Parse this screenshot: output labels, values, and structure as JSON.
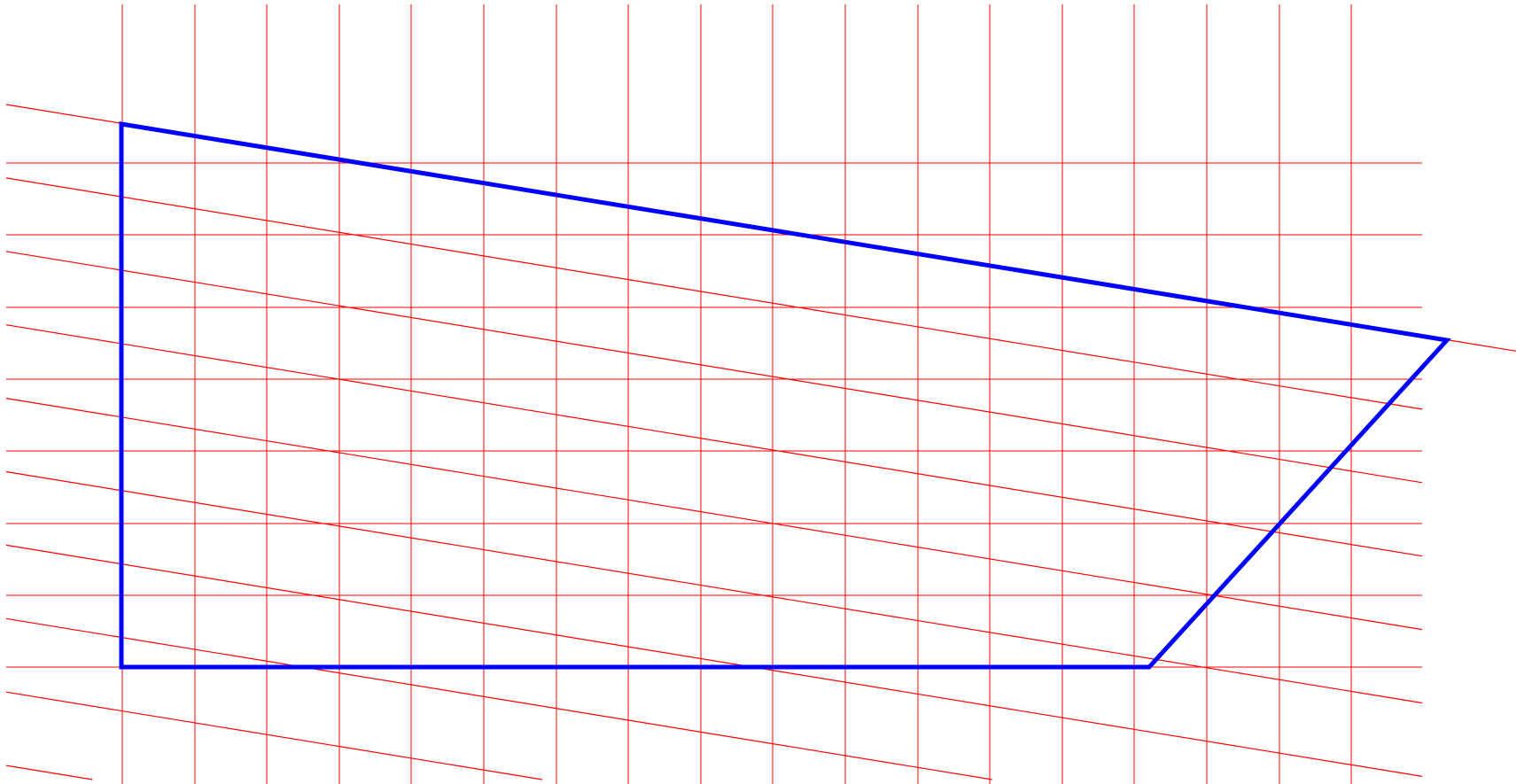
{
  "diagram": {
    "colors": {
      "grid": "#ff0000",
      "outline": "#0000ff",
      "background": "#ffffff"
    },
    "vertical_line_count": 18,
    "horizontal_line_count": 8,
    "slanted_line_count": 10,
    "outline_shape": "quadrilateral"
  }
}
